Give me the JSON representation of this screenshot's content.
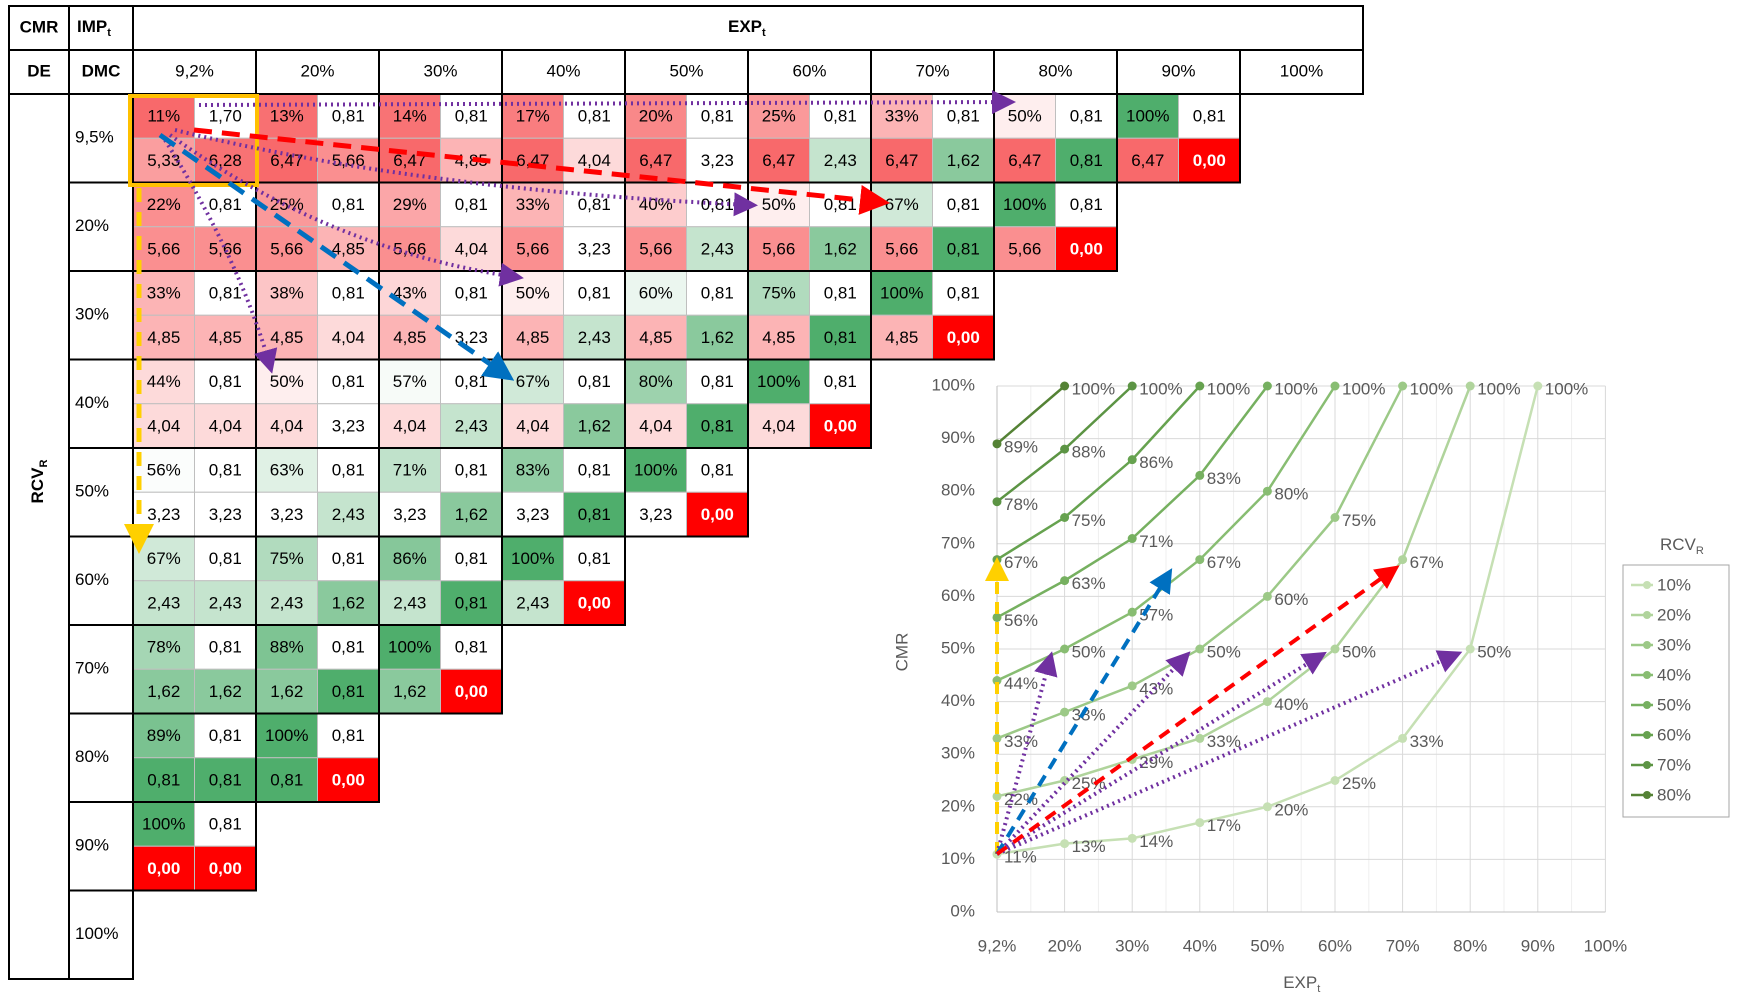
{
  "table": {
    "header": {
      "cmr": "CMR",
      "imp": {
        "text": "IMP",
        "sub": "t"
      },
      "exp": {
        "text": "EXP",
        "sub": "t"
      },
      "de": "DE",
      "dmc": "DMC",
      "columns": [
        "9,2%",
        "20%",
        "30%",
        "40%",
        "50%",
        "60%",
        "70%",
        "80%",
        "90%",
        "100%"
      ]
    },
    "row_axis": {
      "text": "RCV",
      "sub": "R"
    },
    "rows": [
      {
        "label": "9,5%",
        "cells": [
          [
            "11%",
            "1,70",
            "5,33",
            "6,28"
          ],
          [
            "13%",
            "0,81",
            "6,47",
            "5,66"
          ],
          [
            "14%",
            "0,81",
            "6,47",
            "4,85"
          ],
          [
            "17%",
            "0,81",
            "6,47",
            "4,04"
          ],
          [
            "20%",
            "0,81",
            "6,47",
            "3,23"
          ],
          [
            "25%",
            "0,81",
            "6,47",
            "2,43"
          ],
          [
            "33%",
            "0,81",
            "6,47",
            "1,62"
          ],
          [
            "50%",
            "0,81",
            "6,47",
            "0,81"
          ],
          [
            "100%",
            "0,81",
            "6,47",
            "0,00"
          ]
        ]
      },
      {
        "label": "20%",
        "cells": [
          [
            "22%",
            "0,81",
            "5,66",
            "5,66"
          ],
          [
            "25%",
            "0,81",
            "5,66",
            "4,85"
          ],
          [
            "29%",
            "0,81",
            "5,66",
            "4,04"
          ],
          [
            "33%",
            "0,81",
            "5,66",
            "3,23"
          ],
          [
            "40%",
            "0,81",
            "5,66",
            "2,43"
          ],
          [
            "50%",
            "0,81",
            "5,66",
            "1,62"
          ],
          [
            "67%",
            "0,81",
            "5,66",
            "0,81"
          ],
          [
            "100%",
            "0,81",
            "5,66",
            "0,00"
          ]
        ]
      },
      {
        "label": "30%",
        "cells": [
          [
            "33%",
            "0,81",
            "4,85",
            "4,85"
          ],
          [
            "38%",
            "0,81",
            "4,85",
            "4,04"
          ],
          [
            "43%",
            "0,81",
            "4,85",
            "3,23"
          ],
          [
            "50%",
            "0,81",
            "4,85",
            "2,43"
          ],
          [
            "60%",
            "0,81",
            "4,85",
            "1,62"
          ],
          [
            "75%",
            "0,81",
            "4,85",
            "0,81"
          ],
          [
            "100%",
            "0,81",
            "4,85",
            "0,00"
          ]
        ]
      },
      {
        "label": "40%",
        "cells": [
          [
            "44%",
            "0,81",
            "4,04",
            "4,04"
          ],
          [
            "50%",
            "0,81",
            "4,04",
            "3,23"
          ],
          [
            "57%",
            "0,81",
            "4,04",
            "2,43"
          ],
          [
            "67%",
            "0,81",
            "4,04",
            "1,62"
          ],
          [
            "80%",
            "0,81",
            "4,04",
            "0,81"
          ],
          [
            "100%",
            "0,81",
            "4,04",
            "0,00"
          ]
        ]
      },
      {
        "label": "50%",
        "cells": [
          [
            "56%",
            "0,81",
            "3,23",
            "3,23"
          ],
          [
            "63%",
            "0,81",
            "3,23",
            "2,43"
          ],
          [
            "71%",
            "0,81",
            "3,23",
            "1,62"
          ],
          [
            "83%",
            "0,81",
            "3,23",
            "0,81"
          ],
          [
            "100%",
            "0,81",
            "3,23",
            "0,00"
          ]
        ]
      },
      {
        "label": "60%",
        "cells": [
          [
            "67%",
            "0,81",
            "2,43",
            "2,43"
          ],
          [
            "75%",
            "0,81",
            "2,43",
            "1,62"
          ],
          [
            "86%",
            "0,81",
            "2,43",
            "0,81"
          ],
          [
            "100%",
            "0,81",
            "2,43",
            "0,00"
          ]
        ]
      },
      {
        "label": "70%",
        "cells": [
          [
            "78%",
            "0,81",
            "1,62",
            "1,62"
          ],
          [
            "88%",
            "0,81",
            "1,62",
            "0,81"
          ],
          [
            "100%",
            "0,81",
            "1,62",
            "0,00"
          ]
        ]
      },
      {
        "label": "80%",
        "cells": [
          [
            "89%",
            "0,81",
            "0,81",
            "0,81"
          ],
          [
            "100%",
            "0,81",
            "0,81",
            "0,00"
          ]
        ]
      },
      {
        "label": "90%",
        "cells": [
          [
            "100%",
            "0,81",
            "0,00",
            "0,00"
          ]
        ]
      },
      {
        "label": "100%",
        "cells": []
      }
    ]
  },
  "chart_data": {
    "type": "line",
    "y_label": "CMR",
    "x_label": {
      "text": "EXP",
      "sub": "t"
    },
    "legend_title": {
      "text": "RCV",
      "sub": "R"
    },
    "legend": "right",
    "grid": true,
    "categories": [
      "9,2%",
      "20%",
      "30%",
      "40%",
      "50%",
      "60%",
      "70%",
      "80%",
      "90%",
      "100%"
    ],
    "ylim": [
      0,
      100
    ],
    "yticks": [
      {
        "value": 0,
        "label": "0%"
      },
      {
        "value": 10,
        "label": "10%"
      },
      {
        "value": 20,
        "label": "20%"
      },
      {
        "value": 30,
        "label": "30%"
      },
      {
        "value": 40,
        "label": "40%"
      },
      {
        "value": 50,
        "label": "50%"
      },
      {
        "value": 60,
        "label": "60%"
      },
      {
        "value": 70,
        "label": "70%"
      },
      {
        "value": 80,
        "label": "80%"
      },
      {
        "value": 90,
        "label": "90%"
      },
      {
        "value": 100,
        "label": "100%"
      }
    ],
    "series": [
      {
        "name": "10%",
        "color": "#c6e0b4",
        "values": [
          11,
          13,
          14,
          17,
          20,
          25,
          33,
          50,
          100,
          null
        ],
        "value_labels": [
          "11%",
          "13%",
          "14%",
          "17%",
          "20%",
          "25%",
          "33%",
          "50%",
          "100%",
          null
        ]
      },
      {
        "name": "20%",
        "color": "#b0d49c",
        "values": [
          22,
          25,
          29,
          33,
          40,
          50,
          67,
          100,
          null,
          null
        ],
        "value_labels": [
          "22%",
          "25%",
          "29%",
          "33%",
          "40%",
          "50%",
          "67%",
          "100%",
          null,
          null
        ]
      },
      {
        "name": "30%",
        "color": "#9cc987",
        "values": [
          33,
          38,
          43,
          50,
          60,
          75,
          100,
          null,
          null,
          null
        ],
        "value_labels": [
          "33%",
          "38%",
          "43%",
          "50%",
          "60%",
          "75%",
          "100%",
          null,
          null,
          null
        ]
      },
      {
        "name": "40%",
        "color": "#88bd72",
        "values": [
          44,
          50,
          57,
          67,
          80,
          100,
          null,
          null,
          null,
          null
        ],
        "value_labels": [
          "44%",
          "50%",
          "57%",
          "67%",
          "80%",
          "100%",
          null,
          null,
          null,
          null
        ]
      },
      {
        "name": "50%",
        "color": "#76b060",
        "values": [
          56,
          63,
          71,
          83,
          100,
          null,
          null,
          null,
          null,
          null
        ],
        "value_labels": [
          "56%",
          "63%",
          "71%",
          "83%",
          "100%",
          null,
          null,
          null,
          null,
          null
        ]
      },
      {
        "name": "60%",
        "color": "#66a24f",
        "values": [
          67,
          75,
          86,
          100,
          null,
          null,
          null,
          null,
          null,
          null
        ],
        "value_labels": [
          "67%",
          "75%",
          "86%",
          "100%",
          null,
          null,
          null,
          null,
          null,
          null
        ]
      },
      {
        "name": "70%",
        "color": "#5c9444",
        "values": [
          78,
          88,
          100,
          null,
          null,
          null,
          null,
          null,
          null,
          null
        ],
        "value_labels": [
          "78%",
          "88%",
          "100%",
          null,
          null,
          null,
          null,
          null,
          null,
          null
        ]
      },
      {
        "name": "80%",
        "color": "#548235",
        "values": [
          89,
          100,
          null,
          null,
          null,
          null,
          null,
          null,
          null,
          null
        ],
        "value_labels": [
          "89%",
          "100%",
          null,
          null,
          null,
          null,
          null,
          null,
          null,
          null
        ]
      }
    ]
  }
}
